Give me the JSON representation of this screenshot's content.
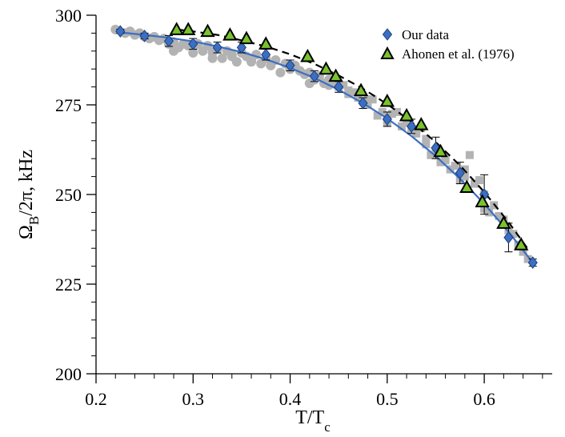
{
  "chart_data": {
    "type": "scatter",
    "xlabel": "T/T",
    "xlabel_sub": "c",
    "ylabel_main": "Ω",
    "ylabel_sub": "B",
    "ylabel_rest": "/2π, kHz",
    "xlim": [
      0.2,
      0.67
    ],
    "ylim": [
      200,
      300
    ],
    "xticks": [
      0.2,
      0.3,
      0.4,
      0.5,
      0.6
    ],
    "xtick_labels": [
      "0.2",
      "0.3",
      "0.4",
      "0.5",
      "0.6"
    ],
    "yticks": [
      200,
      225,
      250,
      275,
      300
    ],
    "ytick_labels": [
      "200",
      "225",
      "250",
      "275",
      "300"
    ],
    "legend_position": "top-right",
    "series": [
      {
        "name": "Our data",
        "marker": "diamond",
        "color": "#3a6fc4",
        "x": [
          0.225,
          0.25,
          0.275,
          0.3,
          0.325,
          0.35,
          0.375,
          0.4,
          0.425,
          0.45,
          0.475,
          0.5,
          0.525,
          0.55,
          0.575,
          0.6,
          0.625,
          0.65
        ],
        "y": [
          295.5,
          294.2,
          292.8,
          292,
          291,
          291,
          289,
          286,
          283,
          280,
          275.5,
          271,
          269,
          263,
          256,
          250,
          238,
          231
        ],
        "yerr": [
          0.6,
          0.8,
          1.5,
          1.5,
          1.5,
          1.5,
          1.5,
          1.5,
          1.5,
          1.5,
          1.5,
          2,
          2,
          3,
          3,
          5.5,
          4,
          1
        ]
      },
      {
        "name": "Ahonen et al. (1976)",
        "marker": "triangle",
        "color": "#7ac22e",
        "x": [
          0.283,
          0.295,
          0.315,
          0.338,
          0.355,
          0.375,
          0.418,
          0.437,
          0.447,
          0.473,
          0.5,
          0.52,
          0.535,
          0.555,
          0.582,
          0.598,
          0.62,
          0.638
        ],
        "y": [
          296,
          296,
          295.5,
          294.5,
          293.5,
          292,
          288.5,
          285,
          283,
          279,
          276,
          272,
          269.5,
          262,
          252,
          248,
          242,
          236
        ]
      }
    ],
    "background_points": {
      "name": "grey scatter",
      "color": "#b3b3b3",
      "x": [
        0.22,
        0.23,
        0.235,
        0.24,
        0.245,
        0.25,
        0.255,
        0.26,
        0.265,
        0.27,
        0.275,
        0.28,
        0.285,
        0.29,
        0.295,
        0.3,
        0.305,
        0.31,
        0.315,
        0.32,
        0.325,
        0.33,
        0.335,
        0.34,
        0.345,
        0.35,
        0.355,
        0.36,
        0.365,
        0.37,
        0.375,
        0.38,
        0.385,
        0.39,
        0.395,
        0.4,
        0.405,
        0.41,
        0.415,
        0.42,
        0.425,
        0.43,
        0.435,
        0.44,
        0.445,
        0.45,
        0.455,
        0.46,
        0.465,
        0.47,
        0.475,
        0.48,
        0.485,
        0.49,
        0.495,
        0.5,
        0.505,
        0.51,
        0.515,
        0.52,
        0.525,
        0.53,
        0.535,
        0.54,
        0.545,
        0.55,
        0.555,
        0.56,
        0.565,
        0.57,
        0.575,
        0.58,
        0.585,
        0.59,
        0.595,
        0.6,
        0.605,
        0.61,
        0.615,
        0.62,
        0.625,
        0.63,
        0.635,
        0.64,
        0.645,
        0.28,
        0.3,
        0.32,
        0.34,
        0.36,
        0.38,
        0.4,
        0.42,
        0.44,
        0.46,
        0.48,
        0.5,
        0.52,
        0.54,
        0.56,
        0.58,
        0.6,
        0.62
      ],
      "y": [
        296,
        295,
        295.5,
        294.5,
        295,
        294,
        293.5,
        294,
        293,
        293.5,
        292,
        292.5,
        291,
        292,
        291.5,
        291,
        292,
        290,
        291.5,
        289.5,
        290.5,
        288,
        290,
        289,
        287,
        289.5,
        288.5,
        287,
        289,
        286.5,
        288,
        286,
        287.5,
        284,
        286.5,
        285,
        286,
        284.5,
        283.5,
        284,
        282,
        283,
        281,
        282,
        281.5,
        280,
        280.5,
        279,
        278.5,
        277,
        276,
        275,
        276.5,
        272,
        273,
        270,
        272.5,
        273,
        269,
        270,
        268,
        267,
        268.5,
        264,
        261,
        262,
        259,
        260,
        257,
        258,
        254,
        255,
        261,
        253,
        254,
        250,
        245,
        247,
        244,
        242,
        240,
        239,
        236,
        234,
        232,
        290,
        289.5,
        288,
        288.5,
        287.5,
        286,
        285,
        281,
        280.5,
        278,
        276.5,
        270,
        271,
        265.5,
        259.5,
        257,
        246,
        243
      ]
    },
    "curves": [
      {
        "name": "blue fit",
        "style": "solid",
        "color": "#3a6fc4",
        "x": [
          0.225,
          0.25,
          0.275,
          0.3,
          0.325,
          0.35,
          0.375,
          0.4,
          0.425,
          0.45,
          0.475,
          0.5,
          0.525,
          0.55,
          0.575,
          0.6,
          0.625,
          0.65
        ],
        "y": [
          295.2,
          294.5,
          293.7,
          292.7,
          291.3,
          289.7,
          287.7,
          285.3,
          282.5,
          279.2,
          275.5,
          271.2,
          266.3,
          260.7,
          254.4,
          247.4,
          239.6,
          231
        ]
      },
      {
        "name": "black dashed fit",
        "style": "dashed",
        "color": "#000000",
        "x": [
          0.283,
          0.3,
          0.325,
          0.35,
          0.375,
          0.4,
          0.425,
          0.45,
          0.475,
          0.5,
          0.525,
          0.55,
          0.575,
          0.6,
          0.625,
          0.645
        ],
        "y": [
          296,
          295.5,
          294.5,
          293,
          291.3,
          289.1,
          286.4,
          283.2,
          279.5,
          275.2,
          270.3,
          264.6,
          258.1,
          250.7,
          242.3,
          234.8
        ]
      }
    ]
  }
}
